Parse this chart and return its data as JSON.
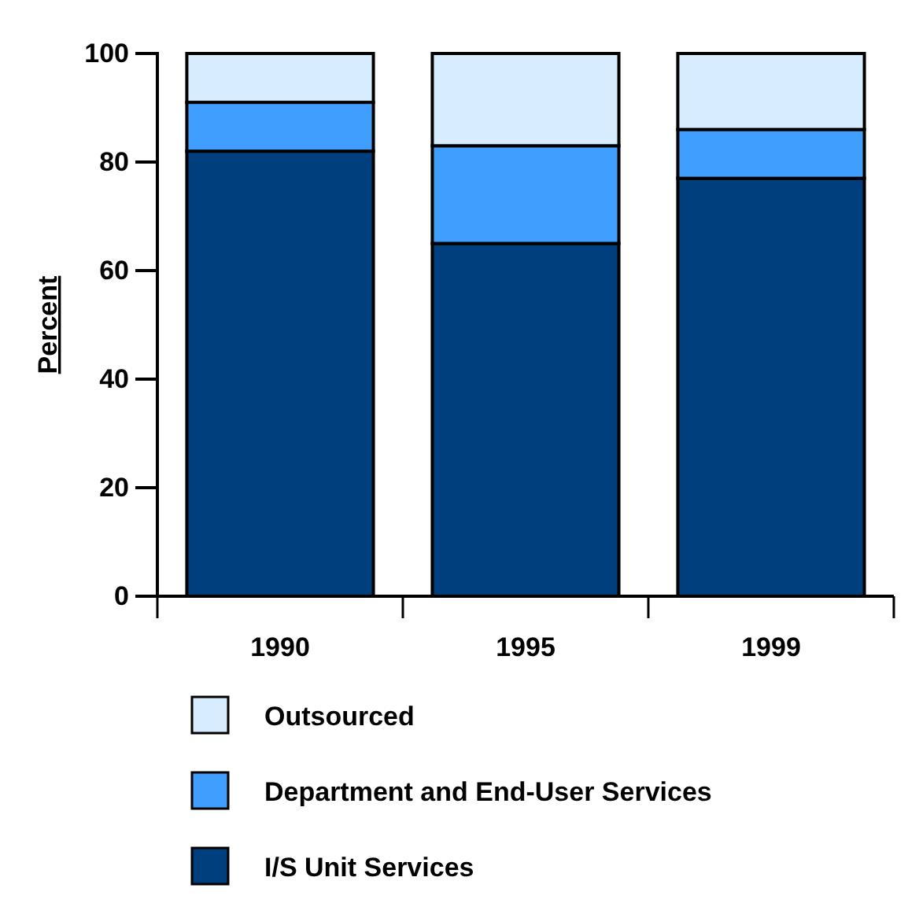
{
  "chart_data": {
    "type": "bar",
    "stacked": true,
    "categories": [
      "1990",
      "1995",
      "1999"
    ],
    "series": [
      {
        "name": "I/S Unit Services",
        "color": "#003f7d",
        "values": [
          82,
          65,
          77
        ]
      },
      {
        "name": "Department and End-User Services",
        "color": "#409eff",
        "values": [
          9,
          18,
          9
        ]
      },
      {
        "name": "Outsourced",
        "color": "#d8ecff",
        "values": [
          9,
          17,
          14
        ]
      }
    ],
    "ylabel": "Percent",
    "ylim": [
      0,
      100
    ],
    "yticks": [
      0,
      20,
      40,
      60,
      80,
      100
    ],
    "legend": "bottom"
  }
}
